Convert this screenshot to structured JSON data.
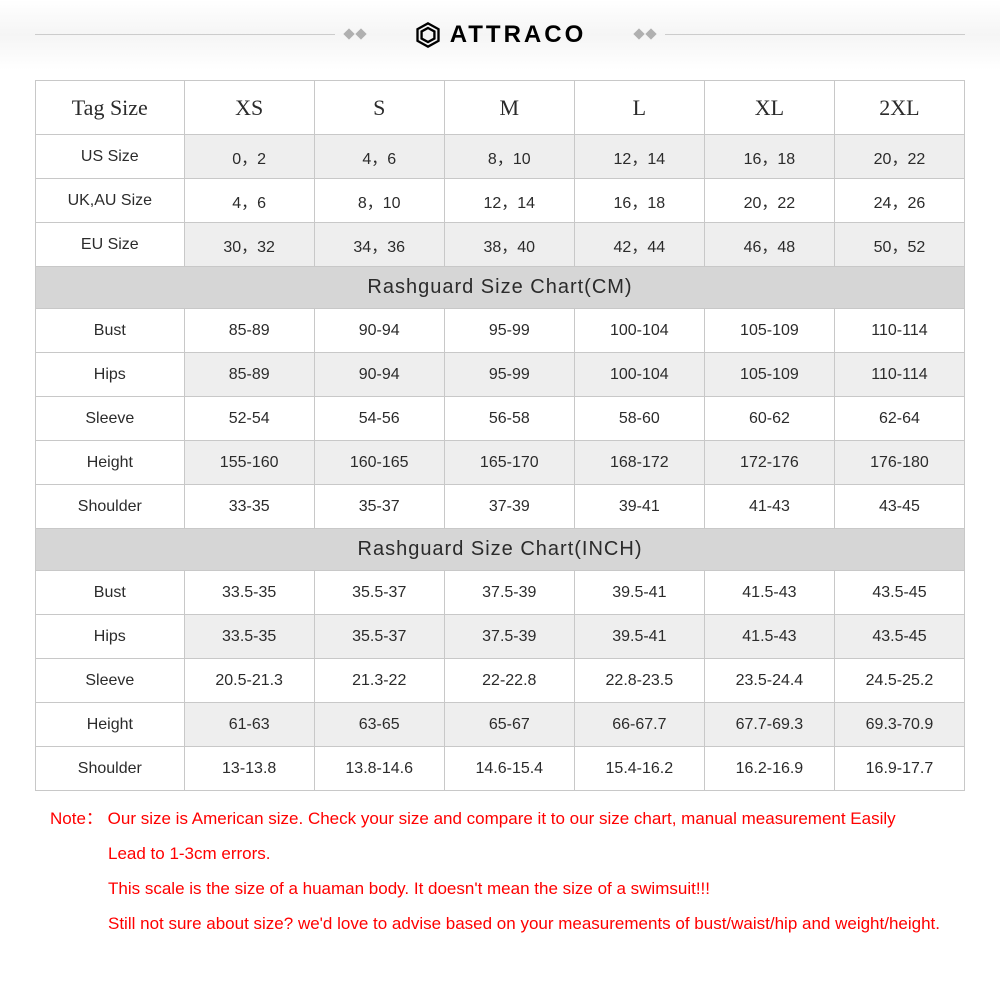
{
  "brand": {
    "name": "ATTRACO"
  },
  "table": {
    "columns": [
      "Tag Size",
      "XS",
      "S",
      "M",
      "L",
      "XL",
      "2XL"
    ],
    "conversion_rows": [
      {
        "label": "US Size",
        "values": [
          "0，2",
          "4，6",
          "8，10",
          "12，14",
          "16，18",
          "20，22"
        ],
        "grey": true
      },
      {
        "label": "UK,AU Size",
        "values": [
          "4，6",
          "8，10",
          "12，14",
          "16，18",
          "20，22",
          "24，26"
        ],
        "grey": false
      },
      {
        "label": "EU Size",
        "values": [
          "30，32",
          "34，36",
          "38，40",
          "42，44",
          "46，48",
          "50，52"
        ],
        "grey": true
      }
    ],
    "section_cm": {
      "title": "Rashguard Size Chart(CM)",
      "rows": [
        {
          "label": "Bust",
          "values": [
            "85-89",
            "90-94",
            "95-99",
            "100-104",
            "105-109",
            "110-114"
          ]
        },
        {
          "label": "Hips",
          "values": [
            "85-89",
            "90-94",
            "95-99",
            "100-104",
            "105-109",
            "110-114"
          ]
        },
        {
          "label": "Sleeve",
          "values": [
            "52-54",
            "54-56",
            "56-58",
            "58-60",
            "60-62",
            "62-64"
          ]
        },
        {
          "label": "Height",
          "values": [
            "155-160",
            "160-165",
            "165-170",
            "168-172",
            "172-176",
            "176-180"
          ]
        },
        {
          "label": "Shoulder",
          "values": [
            "33-35",
            "35-37",
            "37-39",
            "39-41",
            "41-43",
            "43-45"
          ]
        }
      ]
    },
    "section_inch": {
      "title": "Rashguard Size Chart(INCH)",
      "rows": [
        {
          "label": "Bust",
          "values": [
            "33.5-35",
            "35.5-37",
            "37.5-39",
            "39.5-41",
            "41.5-43",
            "43.5-45"
          ]
        },
        {
          "label": "Hips",
          "values": [
            "33.5-35",
            "35.5-37",
            "37.5-39",
            "39.5-41",
            "41.5-43",
            "43.5-45"
          ]
        },
        {
          "label": "Sleeve",
          "values": [
            "20.5-21.3",
            "21.3-22",
            "22-22.8",
            "22.8-23.5",
            "23.5-24.4",
            "24.5-25.2"
          ]
        },
        {
          "label": "Height",
          "values": [
            "61-63",
            "63-65",
            "65-67",
            "66-67.7",
            "67.7-69.3",
            "69.3-70.9"
          ]
        },
        {
          "label": "Shoulder",
          "values": [
            "13-13.8",
            "13.8-14.6",
            "14.6-15.4",
            "15.4-16.2",
            "16.2-16.9",
            "16.9-17.7"
          ]
        }
      ]
    }
  },
  "note": {
    "label": "Note：",
    "line1a": "Our size is American size. Check your size and compare it to our size chart, manual measurement Easily",
    "line1b": "Lead to 1-3cm errors.",
    "line2": "This scale is the size of a huaman body. It doesn't mean the size of a swimsuit!!!",
    "line3": "Still not sure about size? we'd love to advise based on your measurements of bust/waist/hip and weight/height."
  },
  "style": {
    "border_color": "#c8c8c8",
    "grey_row_bg": "#eeeeee",
    "section_bg": "#d6d6d6",
    "text_color": "#2b2b2b",
    "note_color": "#ff0000",
    "header_fontsize": 22,
    "cell_fontsize": 16,
    "section_fontsize": 20,
    "note_fontsize": 17
  }
}
